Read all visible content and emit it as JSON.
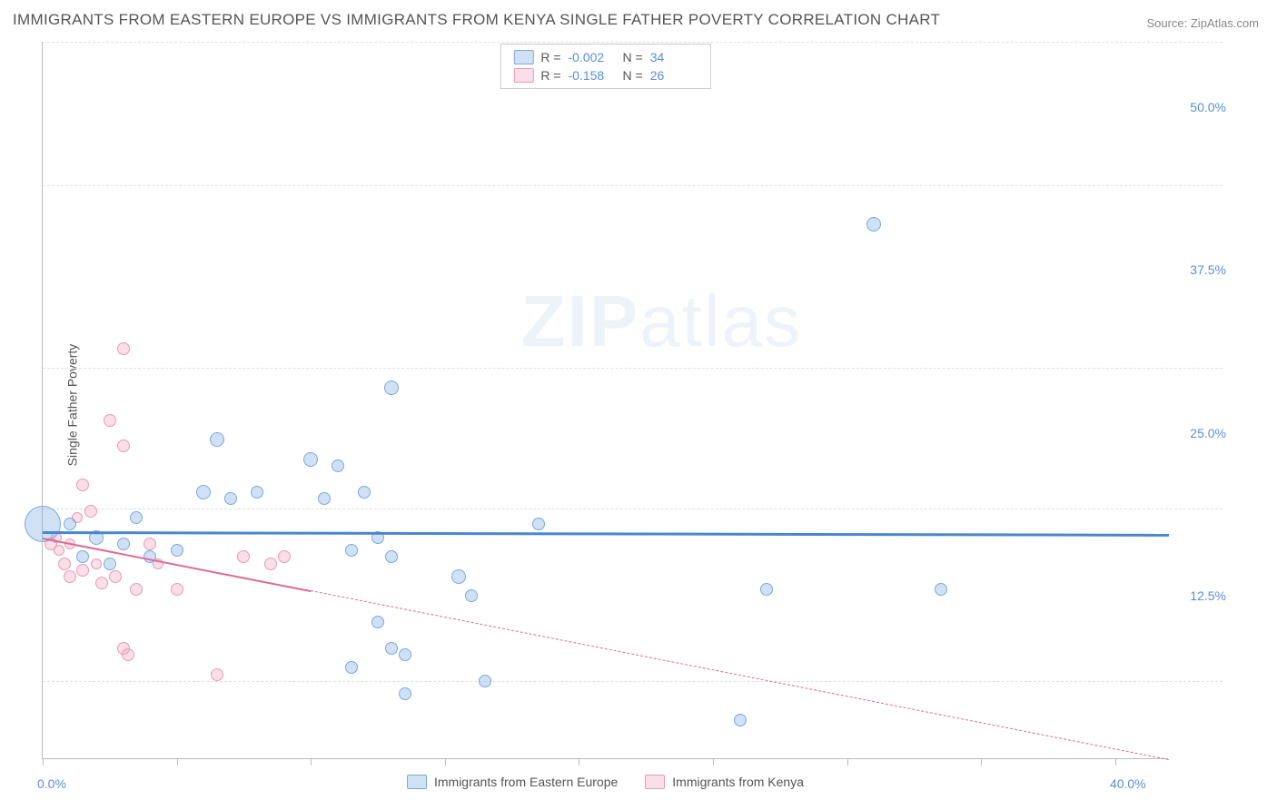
{
  "title": "IMMIGRANTS FROM EASTERN EUROPE VS IMMIGRANTS FROM KENYA SINGLE FATHER POVERTY CORRELATION CHART",
  "source": "Source: ZipAtlas.com",
  "ylabel": "Single Father Poverty",
  "watermark_a": "ZIP",
  "watermark_b": "atlas",
  "chart": {
    "type": "scatter",
    "xlim": [
      0,
      42
    ],
    "ylim": [
      0,
      55
    ],
    "x_ticks": [
      0,
      5,
      10,
      15,
      20,
      25,
      30,
      35,
      40
    ],
    "y_gridlines": [
      6,
      19.25,
      30,
      44,
      55
    ],
    "x_axis_labels": [
      {
        "v": 0,
        "t": "0.0%"
      },
      {
        "v": 40,
        "t": "40.0%"
      }
    ],
    "y_axis_labels": [
      {
        "v": 12.5,
        "t": "12.5%"
      },
      {
        "v": 25.0,
        "t": "25.0%"
      },
      {
        "v": 37.5,
        "t": "37.5%"
      },
      {
        "v": 50.0,
        "t": "50.0%"
      }
    ],
    "background_color": "#ffffff",
    "grid_color": "#e0e0e0",
    "axis_color": "#bbbbbb"
  },
  "series": {
    "blue": {
      "name": "Immigrants from Eastern Europe",
      "fill": "rgba(120,170,230,0.35)",
      "stroke": "#7aa8e0",
      "r": -0.002,
      "n": 34,
      "regression": {
        "y_at_x0": 17.5,
        "y_at_xmax": 17.3,
        "solid_until_x": 42,
        "color": "#4a86d0",
        "width": 3
      },
      "points": [
        {
          "x": 0.0,
          "y": 18.0,
          "s": 40
        },
        {
          "x": 1.0,
          "y": 18.0,
          "s": 14
        },
        {
          "x": 1.5,
          "y": 15.5,
          "s": 14
        },
        {
          "x": 2.0,
          "y": 17.0,
          "s": 16
        },
        {
          "x": 2.5,
          "y": 15.0,
          "s": 14
        },
        {
          "x": 3.0,
          "y": 16.5,
          "s": 14
        },
        {
          "x": 3.5,
          "y": 18.5,
          "s": 14
        },
        {
          "x": 4.0,
          "y": 15.5,
          "s": 14
        },
        {
          "x": 5.0,
          "y": 16.0,
          "s": 14
        },
        {
          "x": 6.0,
          "y": 20.5,
          "s": 16
        },
        {
          "x": 6.5,
          "y": 24.5,
          "s": 16
        },
        {
          "x": 7.0,
          "y": 20.0,
          "s": 14
        },
        {
          "x": 8.0,
          "y": 20.5,
          "s": 14
        },
        {
          "x": 10.0,
          "y": 23.0,
          "s": 16
        },
        {
          "x": 10.5,
          "y": 20.0,
          "s": 14
        },
        {
          "x": 11.0,
          "y": 22.5,
          "s": 14
        },
        {
          "x": 11.5,
          "y": 16.0,
          "s": 14
        },
        {
          "x": 12.0,
          "y": 20.5,
          "s": 14
        },
        {
          "x": 11.5,
          "y": 7.0,
          "s": 14
        },
        {
          "x": 12.5,
          "y": 10.5,
          "s": 14
        },
        {
          "x": 13.0,
          "y": 8.5,
          "s": 14
        },
        {
          "x": 13.5,
          "y": 8.0,
          "s": 14
        },
        {
          "x": 13.0,
          "y": 28.5,
          "s": 16
        },
        {
          "x": 13.5,
          "y": 5.0,
          "s": 14
        },
        {
          "x": 15.5,
          "y": 14.0,
          "s": 16
        },
        {
          "x": 16.0,
          "y": 12.5,
          "s": 14
        },
        {
          "x": 16.5,
          "y": 6.0,
          "s": 14
        },
        {
          "x": 18.5,
          "y": 18.0,
          "s": 14
        },
        {
          "x": 26.0,
          "y": 3.0,
          "s": 14
        },
        {
          "x": 27.0,
          "y": 13.0,
          "s": 14
        },
        {
          "x": 31.0,
          "y": 41.0,
          "s": 16
        },
        {
          "x": 33.5,
          "y": 13.0,
          "s": 14
        },
        {
          "x": 12.5,
          "y": 17.0,
          "s": 14
        },
        {
          "x": 13.0,
          "y": 15.5,
          "s": 14
        }
      ]
    },
    "pink": {
      "name": "Immigrants from Kenya",
      "fill": "rgba(240,160,190,0.35)",
      "stroke": "#e89ab8",
      "r": -0.158,
      "n": 26,
      "regression": {
        "y_at_x0": 17.0,
        "y_at_xmax": 0.0,
        "solid_until_x": 10,
        "color": "#e06a95",
        "width": 2
      },
      "points": [
        {
          "x": 0.3,
          "y": 16.5,
          "s": 14
        },
        {
          "x": 0.5,
          "y": 17.0,
          "s": 12
        },
        {
          "x": 0.6,
          "y": 16.0,
          "s": 12
        },
        {
          "x": 0.8,
          "y": 15.0,
          "s": 14
        },
        {
          "x": 1.0,
          "y": 16.5,
          "s": 12
        },
        {
          "x": 1.0,
          "y": 14.0,
          "s": 14
        },
        {
          "x": 1.3,
          "y": 18.5,
          "s": 12
        },
        {
          "x": 1.5,
          "y": 21.0,
          "s": 14
        },
        {
          "x": 1.8,
          "y": 19.0,
          "s": 14
        },
        {
          "x": 1.5,
          "y": 14.5,
          "s": 14
        },
        {
          "x": 2.0,
          "y": 15.0,
          "s": 12
        },
        {
          "x": 2.2,
          "y": 13.5,
          "s": 14
        },
        {
          "x": 2.5,
          "y": 26.0,
          "s": 14
        },
        {
          "x": 2.7,
          "y": 14.0,
          "s": 14
        },
        {
          "x": 3.0,
          "y": 24.0,
          "s": 14
        },
        {
          "x": 3.0,
          "y": 31.5,
          "s": 14
        },
        {
          "x": 3.0,
          "y": 8.5,
          "s": 14
        },
        {
          "x": 3.2,
          "y": 8.0,
          "s": 14
        },
        {
          "x": 3.5,
          "y": 13.0,
          "s": 14
        },
        {
          "x": 4.0,
          "y": 16.5,
          "s": 14
        },
        {
          "x": 4.3,
          "y": 15.0,
          "s": 12
        },
        {
          "x": 5.0,
          "y": 13.0,
          "s": 14
        },
        {
          "x": 6.5,
          "y": 6.5,
          "s": 14
        },
        {
          "x": 7.5,
          "y": 15.5,
          "s": 14
        },
        {
          "x": 8.5,
          "y": 15.0,
          "s": 14
        },
        {
          "x": 9.0,
          "y": 15.5,
          "s": 14
        }
      ]
    }
  },
  "legend_top": {
    "rows": [
      {
        "swatch": "blue",
        "r": "-0.002",
        "n": "34"
      },
      {
        "swatch": "pink",
        "r": "-0.158",
        "n": "26"
      }
    ],
    "r_label": "R =",
    "n_label": "N ="
  },
  "legend_bottom": [
    {
      "swatch": "blue",
      "label": "Immigrants from Eastern Europe"
    },
    {
      "swatch": "pink",
      "label": "Immigrants from Kenya"
    }
  ]
}
